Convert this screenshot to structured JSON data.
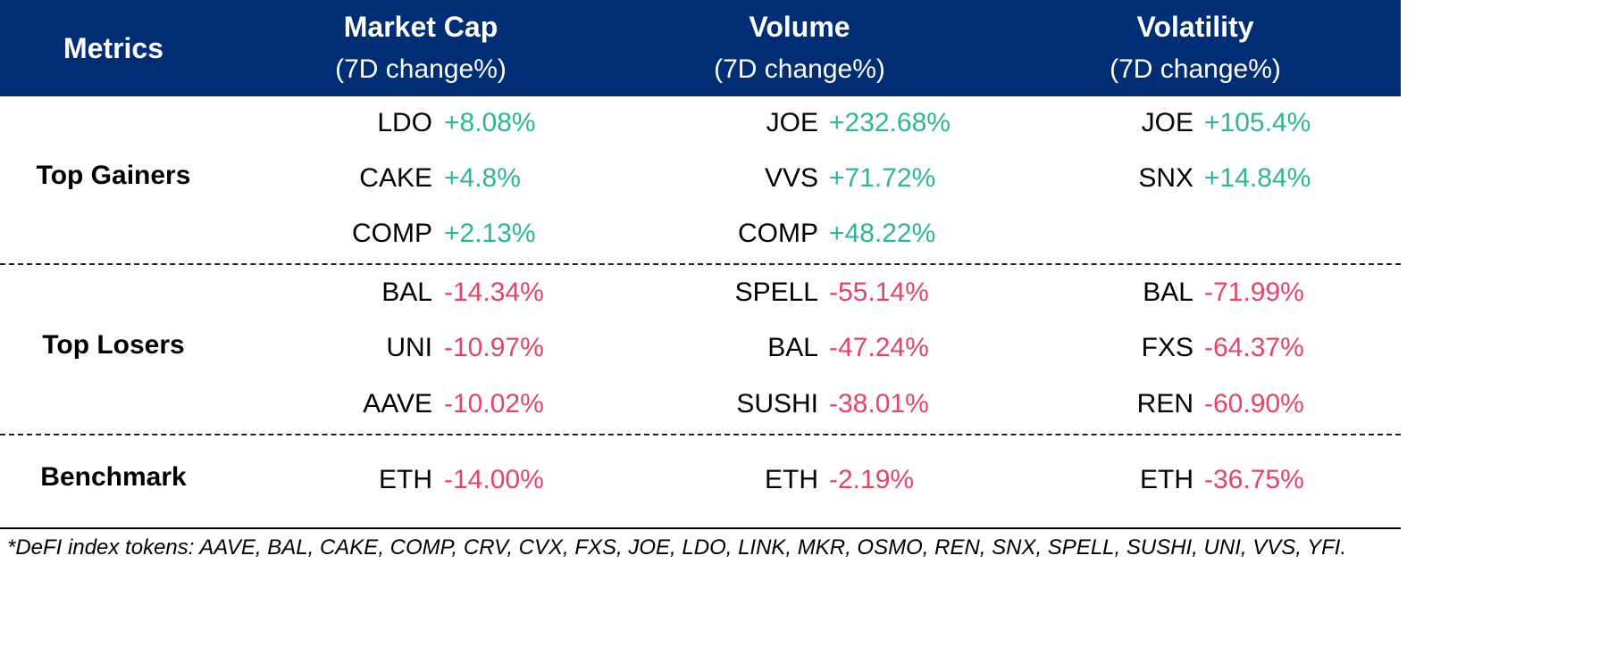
{
  "header": {
    "metrics": "Metrics",
    "market_cap": {
      "title": "Market Cap",
      "sub": "(7D change%)"
    },
    "volume": {
      "title": "Volume",
      "sub": "(7D change%)"
    },
    "volatility": {
      "title": "Volatility",
      "sub": "(7D change%)"
    }
  },
  "gainers": {
    "label": "Top Gainers",
    "market_cap": [
      {
        "token": "LDO",
        "change": "+8.08%"
      },
      {
        "token": "CAKE",
        "change": "+4.8%"
      },
      {
        "token": "COMP",
        "change": "+2.13%"
      }
    ],
    "volume": [
      {
        "token": "JOE",
        "change": "+232.68%"
      },
      {
        "token": "VVS",
        "change": "+71.72%"
      },
      {
        "token": "COMP",
        "change": "+48.22%"
      }
    ],
    "volatility": [
      {
        "token": "JOE",
        "change": "+105.4%"
      },
      {
        "token": "SNX",
        "change": "+14.84%"
      }
    ]
  },
  "losers": {
    "label": "Top Losers",
    "market_cap": [
      {
        "token": "BAL",
        "change": "-14.34%"
      },
      {
        "token": "UNI",
        "change": "-10.97%"
      },
      {
        "token": "AAVE",
        "change": "-10.02%"
      }
    ],
    "volume": [
      {
        "token": "SPELL",
        "change": "-55.14%"
      },
      {
        "token": "BAL",
        "change": "-47.24%"
      },
      {
        "token": "SUSHI",
        "change": "-38.01%"
      }
    ],
    "volatility": [
      {
        "token": "BAL",
        "change": "-71.99%"
      },
      {
        "token": "FXS",
        "change": "-64.37%"
      },
      {
        "token": "REN",
        "change": "-60.90%"
      }
    ]
  },
  "benchmark": {
    "label": "Benchmark",
    "market_cap": {
      "token": "ETH",
      "change": "-14.00%"
    },
    "volume": {
      "token": "ETH",
      "change": "-2.19%"
    },
    "volatility": {
      "token": "ETH",
      "change": "-36.75%"
    }
  },
  "footnote": "*DeFI index tokens: AAVE, BAL, CAKE, COMP, CRV, CVX, FXS, JOE, LDO, LINK, MKR, OSMO, REN, SNX, SPELL, SUSHI, UNI, VVS, YFI.",
  "colors": {
    "header_bg": "#002d74",
    "positive": "#2fb597",
    "negative": "#e34566"
  }
}
